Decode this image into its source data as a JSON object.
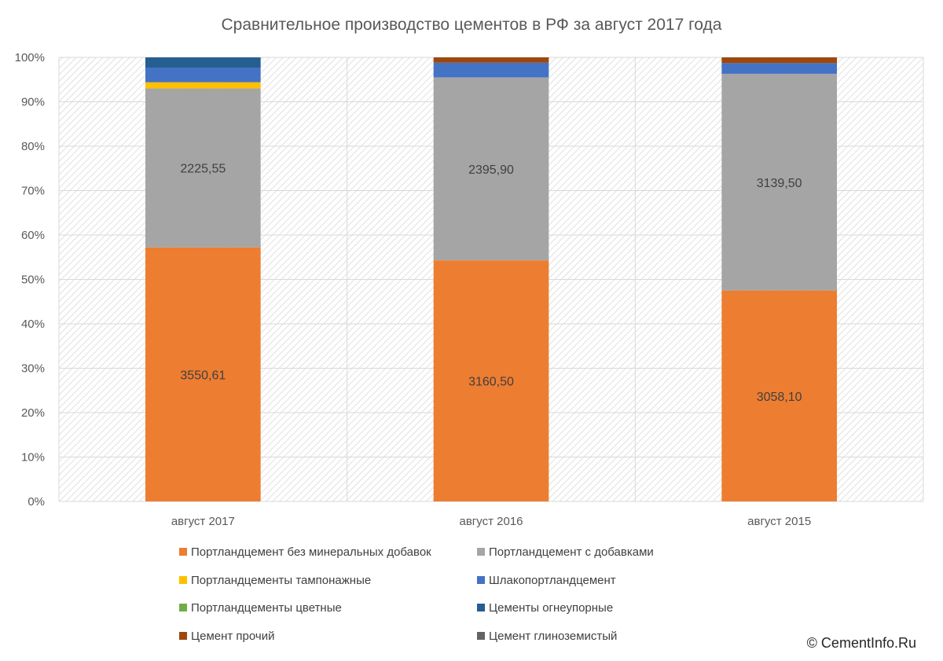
{
  "chart_data": {
    "type": "bar",
    "stacked": "percent",
    "title": "Сравнительное производство цементов в РФ за август 2017 года",
    "categories": [
      "август 2017",
      "август 2016",
      "август 2015"
    ],
    "y_ticks": [
      "0%",
      "10%",
      "20%",
      "30%",
      "40%",
      "50%",
      "60%",
      "70%",
      "80%",
      "90%",
      "100%"
    ],
    "ylim": [
      0,
      100
    ],
    "grid": true,
    "legend_position": "bottom",
    "series": [
      {
        "name": "Портландцемент без минеральных добавок",
        "color": "#ED7D31",
        "values": [
          57.2,
          54.3,
          47.5
        ],
        "labels": [
          "3550,61",
          "3160,50",
          "3058,10"
        ]
      },
      {
        "name": "Портландцемент с добавками",
        "color": "#A5A5A5",
        "values": [
          35.8,
          41.2,
          48.8
        ],
        "labels": [
          "2225,55",
          "2395,90",
          "3139,50"
        ]
      },
      {
        "name": "Портландцементы тампонажные",
        "color": "#FFC000",
        "values": [
          1.4,
          0,
          0
        ],
        "labels": [
          "",
          "",
          ""
        ]
      },
      {
        "name": "Шлакопортландцемент",
        "color": "#4472C4",
        "values": [
          3.3,
          3.3,
          2.4
        ],
        "labels": [
          "",
          "",
          ""
        ]
      },
      {
        "name": "Портландцементы цветные",
        "color": "#70AD47",
        "values": [
          0,
          0,
          0
        ],
        "labels": [
          "",
          "",
          ""
        ]
      },
      {
        "name": "Цементы огнеупорные",
        "color": "#255E91",
        "values": [
          2.3,
          0,
          0
        ],
        "labels": [
          "",
          "",
          ""
        ]
      },
      {
        "name": "Цемент прочий",
        "color": "#9E480E",
        "values": [
          0,
          1.2,
          1.3
        ],
        "labels": [
          "",
          "",
          ""
        ]
      },
      {
        "name": "Цемент глиноземистый",
        "color": "#636363",
        "values": [
          0,
          0,
          0
        ],
        "labels": [
          "",
          "",
          ""
        ]
      }
    ]
  },
  "copyright": "© CementInfo.Ru"
}
